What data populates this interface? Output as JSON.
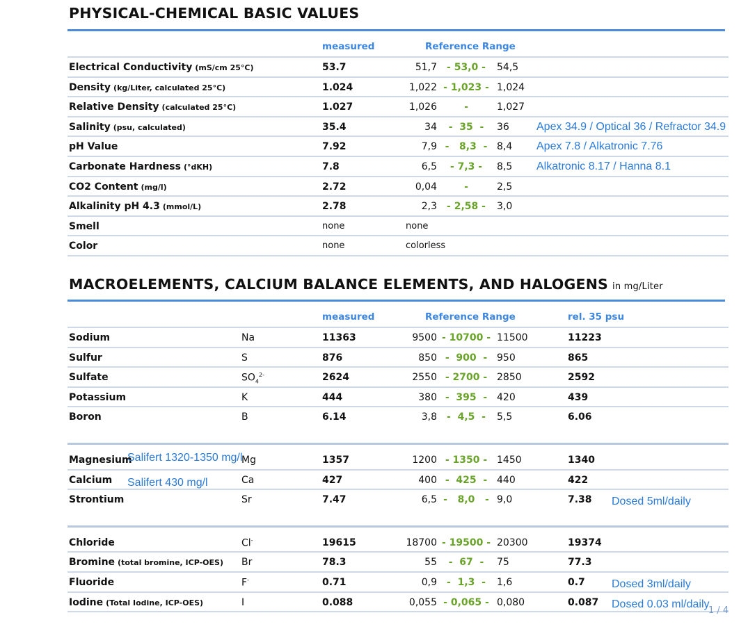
{
  "section1": {
    "title": "PHYSICAL-CHEMICAL BASIC VALUES",
    "headers": {
      "measured": "measured",
      "range": "Reference Range"
    },
    "rows": [
      {
        "name": "Electrical Conductivity",
        "unit": "(mS/cm 25°C)",
        "measured": "53.7",
        "low": "51,7",
        "mid": "- 53,0 -",
        "high": "54,5"
      },
      {
        "name": "Density",
        "unit": "(kg/Liter, calculated 25°C)",
        "measured": "1.024",
        "low": "1,022",
        "mid": "- 1,023 -",
        "high": "1,024"
      },
      {
        "name": "Relative Density",
        "unit": "(calculated 25°C)",
        "measured": "1.027",
        "low": "1,026",
        "mid": "-",
        "high": "1,027"
      },
      {
        "name": "Salinity",
        "unit": "(psu, calculated)",
        "measured": "35.4",
        "low": "34",
        "mid": "-  35  -",
        "high": "36",
        "note": "Apex 34.9 / Optical 36 / Refractor 34.9"
      },
      {
        "name": "pH Value",
        "measured": "7.92",
        "low": "7,9",
        "mid": "-   8,3  -",
        "high": "8,4",
        "note": "Apex 7.8 / Alkatronic 7.76"
      },
      {
        "name": "Carbonate Hardness",
        "unit": "(°dKH)",
        "measured": "7.8",
        "low": "6,5",
        "mid": "- 7,3 -",
        "high": "8,5",
        "note": "Alkatronic 8.17 / Hanna 8.1"
      },
      {
        "name": "CO2 Content",
        "unit": "(mg/l)",
        "measured": "2.72",
        "low": "0,04",
        "mid": "-",
        "high": "2,5"
      },
      {
        "name": "Alkalinity pH 4.3",
        "unit": "(mmol/L)",
        "measured": "2.78",
        "low": "2,3",
        "mid": "- 2,58 -",
        "high": "3,0"
      },
      {
        "name": "Smell",
        "measured": "none",
        "ref_text": "none"
      },
      {
        "name": "Color",
        "measured": "none",
        "ref_text": "colorless"
      }
    ]
  },
  "section2": {
    "title": "MACROELEMENTS,  CALCIUM BALANCE ELEMENTS,  AND HALOGENS",
    "subtitle": "in mg/Liter",
    "headers": {
      "measured": "measured",
      "range": "Reference Range",
      "rel": "rel. 35 psu"
    },
    "groups": [
      [
        {
          "name": "Sodium",
          "symbol": "Na",
          "measured": "11363",
          "low": "9500",
          "mid": "- 10700 -",
          "high": "11500",
          "rel": "11223"
        },
        {
          "name": "Sulfur",
          "symbol": "S",
          "measured": "876",
          "low": "850",
          "mid": "-  900  -",
          "high": "950",
          "rel": "865"
        },
        {
          "name": "Sulfate",
          "symbol": "SO",
          "symbol_sub": "4",
          "symbol_sup": "2-",
          "measured": "2624",
          "low": "2550",
          "mid": "- 2700 -",
          "high": "2850",
          "rel": "2592"
        },
        {
          "name": "Potassium",
          "symbol": "K",
          "measured": "444",
          "low": "380",
          "mid": "-  395  -",
          "high": "420",
          "rel": "439"
        },
        {
          "name": "Boron",
          "symbol": "B",
          "measured": "6.14",
          "low": "3,8",
          "mid": "-  4,5  -",
          "high": "5,5",
          "rel": "6.06"
        }
      ],
      [
        {
          "name": "Magnesium",
          "name_note": "Salifert 1320-1350 mg/l",
          "symbol": "Mg",
          "measured": "1357",
          "low": "1200",
          "mid": "- 1350 -",
          "high": "1450",
          "rel": "1340"
        },
        {
          "name": "Calcium",
          "name_note": "Salifert 430 mg/l",
          "symbol": "Ca",
          "measured": "427",
          "low": "400",
          "mid": "-  425  -",
          "high": "440",
          "rel": "422"
        },
        {
          "name": "Strontium",
          "symbol": "Sr",
          "measured": "7.47",
          "low": "6,5",
          "mid": "-   8,0   -",
          "high": "9,0",
          "rel": "7.38",
          "note": "Dosed 5ml/daily"
        }
      ],
      [
        {
          "name": "Chloride",
          "symbol": "Cl",
          "symbol_sup": "-",
          "measured": "19615",
          "low": "18700",
          "mid": "- 19500 -",
          "high": "20300",
          "rel": "19374"
        },
        {
          "name": "Bromine",
          "unit": "(total bromine, ICP-OES)",
          "symbol": "Br",
          "measured": "78.3",
          "low": "55",
          "mid": "-  67  -",
          "high": "75",
          "rel": "77.3"
        },
        {
          "name": "Fluoride",
          "symbol": "F",
          "symbol_sup": "-",
          "measured": "0.71",
          "low": "0,9",
          "mid": "-  1,3  -",
          "high": "1,6",
          "rel": "0.7",
          "note": "Dosed 3ml/daily"
        },
        {
          "name": "Iodine",
          "unit": "(Total Iodine, ICP-OES)",
          "symbol": "I",
          "measured": "0.088",
          "low": "0,055",
          "mid": "- 0,065 -",
          "high": "0,080",
          "rel": "0.087",
          "note": "Dosed 0.03 ml/daily"
        }
      ]
    ]
  },
  "footer": {
    "page": "1 / 4"
  }
}
